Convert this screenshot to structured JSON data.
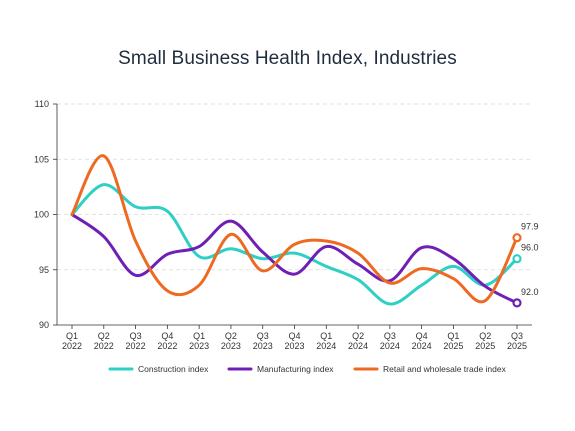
{
  "chart_data": {
    "type": "line",
    "title": "Small Business Health Index, Industries",
    "xlabel": "",
    "ylabel": "",
    "ylim": [
      90,
      110
    ],
    "yticks": [
      90,
      95,
      100,
      105,
      110
    ],
    "grid": true,
    "legend_position": "bottom",
    "categories": [
      [
        "Q1",
        "2022"
      ],
      [
        "Q2",
        "2022"
      ],
      [
        "Q3",
        "2022"
      ],
      [
        "Q4",
        "2022"
      ],
      [
        "Q1",
        "2023"
      ],
      [
        "Q2",
        "2023"
      ],
      [
        "Q3",
        "2023"
      ],
      [
        "Q4",
        "2023"
      ],
      [
        "Q1",
        "2024"
      ],
      [
        "Q2",
        "2024"
      ],
      [
        "Q3",
        "2024"
      ],
      [
        "Q4",
        "2024"
      ],
      [
        "Q1",
        "2025"
      ],
      [
        "Q2",
        "2025"
      ],
      [
        "Q3",
        "2025"
      ]
    ],
    "series": [
      {
        "name": "Construction index",
        "color": "#2ecfc4",
        "values": [
          100,
          102.7,
          100.7,
          100.3,
          96.2,
          96.9,
          96.0,
          96.5,
          95.3,
          94.1,
          91.9,
          93.6,
          95.3,
          93.6,
          96.0
        ],
        "end_label": "96.0"
      },
      {
        "name": "Manufacturing index",
        "color": "#6f1fb4",
        "values": [
          100,
          98.0,
          94.5,
          96.4,
          97.1,
          99.4,
          96.6,
          94.6,
          97.1,
          95.5,
          94.0,
          97.0,
          96.0,
          93.5,
          92.0
        ],
        "end_label": "92.0"
      },
      {
        "name": "Retail and wholesale trade index",
        "color": "#ee6a22",
        "values": [
          100,
          105.3,
          97.6,
          93.1,
          93.6,
          98.2,
          94.9,
          97.3,
          97.6,
          96.5,
          93.8,
          95.1,
          94.2,
          92.2,
          97.9
        ],
        "end_label": "97.9"
      }
    ]
  }
}
